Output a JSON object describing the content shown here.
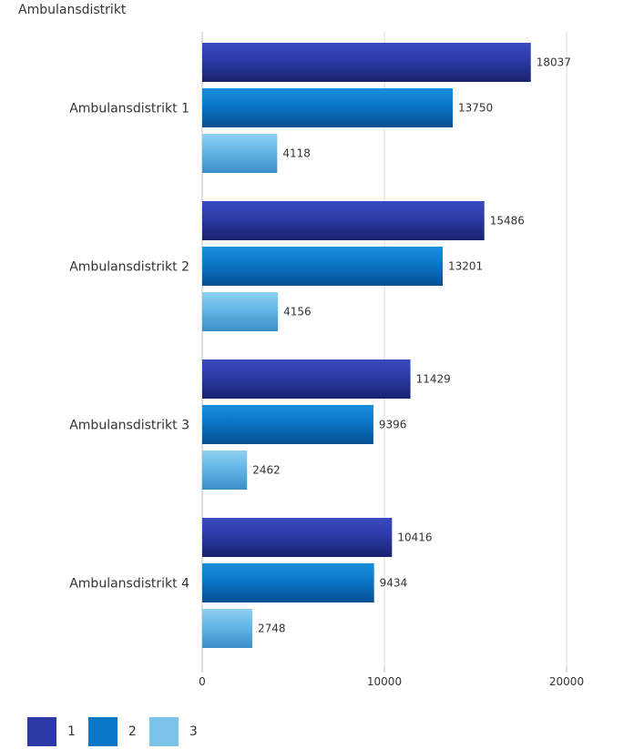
{
  "chart_data": {
    "type": "bar",
    "orientation": "horizontal",
    "title": "",
    "ylabel": "Ambulansdistrikt",
    "categories": [
      "Ambulansdistrikt 1",
      "Ambulansdistrikt 2",
      "Ambulansdistrikt 3",
      "Ambulansdistrikt 4"
    ],
    "series": [
      {
        "name": "1",
        "color": "#2b3aa6",
        "values": [
          18037,
          15486,
          11429,
          10416
        ]
      },
      {
        "name": "2",
        "color": "#0a78c9",
        "values": [
          13750,
          13201,
          9396,
          9434
        ]
      },
      {
        "name": "3",
        "color": "#5fb3e4",
        "values": [
          4118,
          4156,
          2462,
          2748
        ]
      }
    ],
    "xticks": [
      "0",
      "10000",
      "20000"
    ],
    "xlim": [
      0,
      25000
    ],
    "grid": true,
    "legend_position": "bottom-left"
  }
}
